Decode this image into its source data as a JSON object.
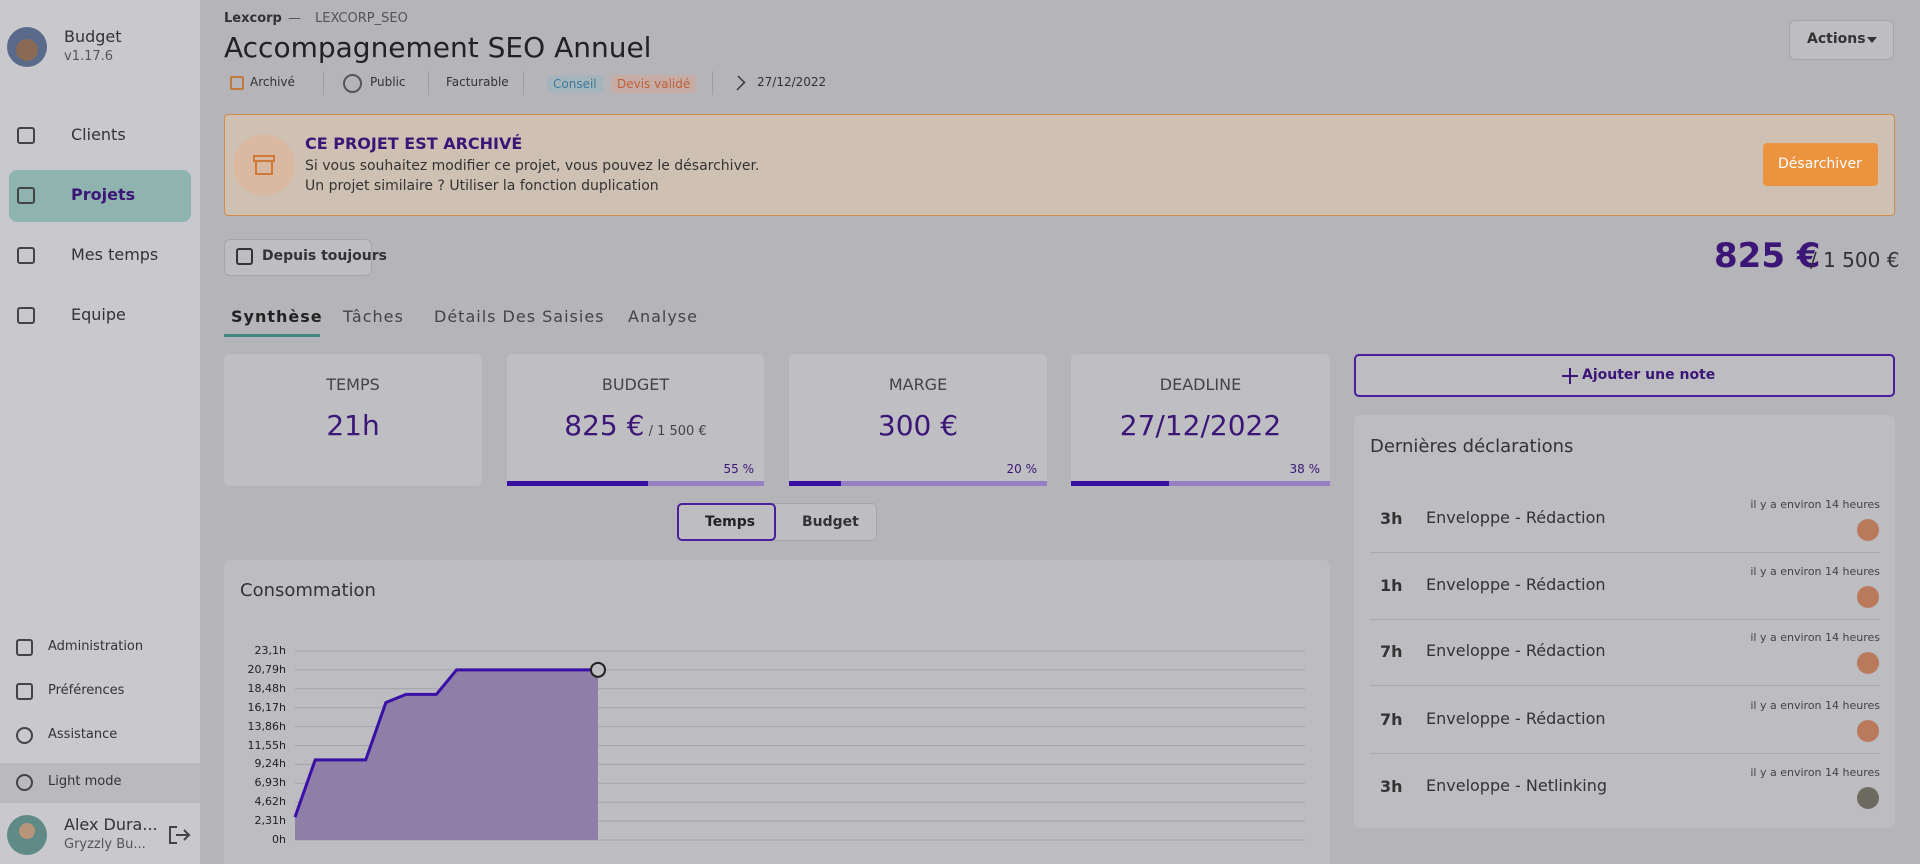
{
  "sidebar": {
    "app_name": "Budget",
    "version": "v1.17.6",
    "nav": [
      "Clients",
      "Projets",
      "Mes temps",
      "Equipe"
    ],
    "bottom_nav": [
      "Administration",
      "Préférences",
      "Assistance",
      "Light mode"
    ],
    "user": {
      "name": "Alex Dura...",
      "company": "Gryzzly Bu..."
    }
  },
  "header": {
    "client": "Lexcorp",
    "separator": "—",
    "code": "LEXCORP_SEO",
    "title": "Accompagnement SEO Annuel",
    "tags": [
      "Archivé",
      "Public",
      "Facturable",
      "Conseil",
      "Devis validé",
      "27/12/2022"
    ],
    "actions": "Actions"
  },
  "banner": {
    "title": "CE PROJET EST ARCHIVÉ",
    "lines": [
      "Si vous souhaitez modifier ce projet, vous pouvez le désarchiver.",
      "Un projet similaire ? Utiliser la fonction duplication"
    ],
    "button": "Désarchiver"
  },
  "period": "Depuis toujours",
  "total": {
    "amount": "825 €",
    "budget": "/ 1 500 €"
  },
  "tabs": [
    "Synthèse",
    "Tâches",
    "Détails Des Saisies",
    "Analyse"
  ],
  "cards": [
    {
      "label": "TEMPS",
      "value": "21h"
    },
    {
      "label": "BUDGET",
      "value": "825 €",
      "sub": "/ 1 500 €",
      "percent": 55,
      "percent_label": "55 %"
    },
    {
      "label": "MARGE",
      "value": "300 €",
      "percent": 20,
      "percent_label": "20 %"
    },
    {
      "label": "DEADLINE",
      "value": "27/12/2022",
      "percent": 38,
      "percent_label": "38 %"
    }
  ],
  "toggle": [
    "Temps",
    "Budget"
  ],
  "consumption": {
    "title": "Consommation",
    "x": [
      0,
      2,
      7,
      9,
      11,
      14,
      16,
      30
    ],
    "values": [
      2.8,
      9.8,
      9.8,
      16.8,
      17.8,
      17.8,
      20.8,
      20.8
    ],
    "xlim": [
      0,
      100
    ],
    "ylim": [
      0,
      23.1
    ],
    "yticks": [
      {
        "value": 0,
        "label": "0h"
      },
      {
        "value": 2.31,
        "label": "2,31h"
      },
      {
        "value": 4.62,
        "label": "4,62h"
      },
      {
        "value": 6.93,
        "label": "6,93h"
      },
      {
        "value": 9.24,
        "label": "9,24h"
      },
      {
        "value": 11.55,
        "label": "11,55h"
      },
      {
        "value": 13.86,
        "label": "13,86h"
      },
      {
        "value": 16.17,
        "label": "16,17h"
      },
      {
        "value": 18.48,
        "label": "18,48h"
      },
      {
        "value": 20.79,
        "label": "20,79h"
      },
      {
        "value": 23.1,
        "label": "23,1h"
      }
    ]
  },
  "notes": {
    "button": "Ajouter une note"
  },
  "declarations": {
    "title": "Dernières déclarations",
    "items": [
      {
        "hours": "3h",
        "task": "Enveloppe - Rédaction",
        "when": "il y a environ 14 heures"
      },
      {
        "hours": "1h",
        "task": "Enveloppe - Rédaction",
        "when": "il y a environ 14 heures"
      },
      {
        "hours": "7h",
        "task": "Enveloppe - Rédaction",
        "when": "il y a environ 14 heures"
      },
      {
        "hours": "7h",
        "task": "Enveloppe - Rédaction",
        "when": "il y a environ 14 heures"
      },
      {
        "hours": "3h",
        "task": "Enveloppe - Netlinking",
        "when": "il y a environ 14 heures"
      }
    ]
  }
}
